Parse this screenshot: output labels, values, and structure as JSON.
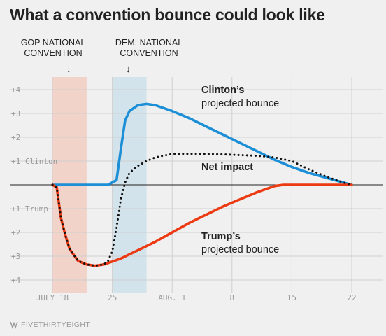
{
  "title": "What a convention bounce could look like",
  "brand": "FIVETHIRTYEIGHT",
  "conventions": {
    "gop": "GOP NATIONAL\nCONVENTION",
    "dem": "DEM. NATIONAL\nCONVENTION",
    "arrow": "↓"
  },
  "colors": {
    "clinton": "#1d8fd6",
    "trump": "#ec3a12",
    "net": "#111111",
    "gop_band": "#f3c9bd",
    "dem_band": "#c8dfea"
  },
  "chart_data": {
    "type": "line",
    "x_ticks": [
      {
        "x": 18,
        "label": "JULY 18"
      },
      {
        "x": 25,
        "label": "25"
      },
      {
        "x": 32,
        "label": "AUG. 1"
      },
      {
        "x": 39,
        "label": "8"
      },
      {
        "x": 46,
        "label": "15"
      },
      {
        "x": 53,
        "label": "22"
      }
    ],
    "y_ticks": [
      {
        "y": 4,
        "label": "+4"
      },
      {
        "y": 3,
        "label": "+3"
      },
      {
        "y": 2,
        "label": "+2"
      },
      {
        "y": 1,
        "label": "+1 Clinton"
      },
      {
        "y": -1,
        "label": "+1 Trump"
      },
      {
        "y": -2,
        "label": "+2"
      },
      {
        "y": -3,
        "label": "+3"
      },
      {
        "y": -4,
        "label": "+4"
      }
    ],
    "xlim": [
      17,
      54
    ],
    "ylim": [
      -4.4,
      4.4
    ],
    "grid": true,
    "bands": [
      {
        "name": "GOP National Convention",
        "start": 18,
        "end": 22
      },
      {
        "name": "Dem. National Convention",
        "start": 25,
        "end": 29
      }
    ],
    "series": [
      {
        "name": "Clinton's projected bounce",
        "label_line1": "Clinton’s",
        "label_line2": "projected bounce",
        "points": [
          [
            18,
            0
          ],
          [
            24.5,
            0
          ],
          [
            25.5,
            0.2
          ],
          [
            26,
            1.5
          ],
          [
            26.5,
            2.7
          ],
          [
            27,
            3.1
          ],
          [
            28,
            3.35
          ],
          [
            29,
            3.4
          ],
          [
            30,
            3.35
          ],
          [
            32,
            3.1
          ],
          [
            34,
            2.8
          ],
          [
            36,
            2.45
          ],
          [
            38,
            2.1
          ],
          [
            40,
            1.75
          ],
          [
            42,
            1.4
          ],
          [
            44,
            1.05
          ],
          [
            46,
            0.75
          ],
          [
            48,
            0.5
          ],
          [
            50,
            0.3
          ],
          [
            52,
            0.1
          ],
          [
            53,
            0
          ]
        ]
      },
      {
        "name": "Trump's projected bounce",
        "label_line1": "Trump’s",
        "label_line2": "projected bounce",
        "points": [
          [
            18,
            0
          ],
          [
            18.5,
            -0.1
          ],
          [
            19,
            -1.4
          ],
          [
            19.5,
            -2.1
          ],
          [
            20,
            -2.7
          ],
          [
            21,
            -3.2
          ],
          [
            22,
            -3.35
          ],
          [
            23,
            -3.4
          ],
          [
            24,
            -3.35
          ],
          [
            26,
            -3.1
          ],
          [
            28,
            -2.75
          ],
          [
            30,
            -2.4
          ],
          [
            32,
            -2.0
          ],
          [
            34,
            -1.6
          ],
          [
            36,
            -1.25
          ],
          [
            38,
            -0.9
          ],
          [
            40,
            -0.6
          ],
          [
            42,
            -0.3
          ],
          [
            44,
            -0.05
          ],
          [
            45,
            0
          ],
          [
            53,
            0
          ]
        ]
      },
      {
        "name": "Net impact",
        "label_line1": "Net impact",
        "label_line2": "",
        "points": [
          [
            18,
            0
          ],
          [
            18.5,
            -0.1
          ],
          [
            19,
            -1.4
          ],
          [
            19.5,
            -2.1
          ],
          [
            20,
            -2.7
          ],
          [
            21,
            -3.2
          ],
          [
            22,
            -3.35
          ],
          [
            23,
            -3.4
          ],
          [
            24,
            -3.35
          ],
          [
            24.5,
            -3.2
          ],
          [
            25,
            -2.8
          ],
          [
            25.5,
            -1.8
          ],
          [
            26,
            -0.6
          ],
          [
            26.5,
            0.1
          ],
          [
            27,
            0.5
          ],
          [
            28,
            0.8
          ],
          [
            29,
            1.0
          ],
          [
            30,
            1.15
          ],
          [
            32,
            1.3
          ],
          [
            34,
            1.3
          ],
          [
            36,
            1.3
          ],
          [
            38,
            1.28
          ],
          [
            40,
            1.25
          ],
          [
            42,
            1.22
          ],
          [
            44,
            1.15
          ],
          [
            46,
            1.0
          ],
          [
            48,
            0.65
          ],
          [
            50,
            0.35
          ],
          [
            52,
            0.1
          ],
          [
            53,
            0
          ]
        ]
      }
    ]
  }
}
